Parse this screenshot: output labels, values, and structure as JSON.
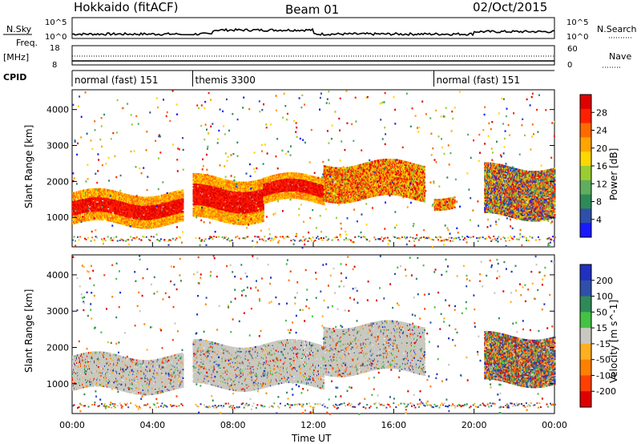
{
  "header": {
    "radar": "Hokkaido (fitACF)",
    "beam": "Beam 01",
    "date": "02/Oct/2015"
  },
  "top_panels": {
    "nsky_label": "N.Sky",
    "nsky_ticks": [
      "10^5",
      "10^0"
    ],
    "nsearch_label": "N.Search",
    "nsearch_ticks": [
      "10^5",
      "10^0"
    ],
    "freq_label": "Freq.",
    "freq_unit": "[MHz]",
    "freq_ticks": [
      "18",
      "8"
    ],
    "nave_label": "Nave",
    "nave_ticks": [
      "60",
      "0"
    ],
    "cpid_label": "CPID",
    "cpid_segments": [
      {
        "label": "normal (fast) 151",
        "start_hour": 0,
        "end_hour": 5.5
      },
      {
        "label": "themis 3300",
        "start_hour": 6.0,
        "end_hour": 18.0
      },
      {
        "label": "normal (fast) 151",
        "start_hour": 18.0,
        "end_hour": 24.0
      }
    ]
  },
  "chart_data": [
    {
      "type": "heatmap",
      "name": "power",
      "ylabel": "Slant Range [km]",
      "xlabel": "Time UT",
      "ylim": [
        180,
        4550
      ],
      "xlim": [
        0,
        24
      ],
      "yticks": [
        "1000",
        "2000",
        "3000",
        "4000"
      ],
      "xticks": [
        "00:00",
        "04:00",
        "08:00",
        "12:00",
        "16:00",
        "20:00",
        "00:00"
      ],
      "colorbar": {
        "label": "Power [dB]",
        "ticks": [
          "28",
          "24",
          "20",
          "16",
          "12",
          "8",
          "4"
        ],
        "colors": [
          "#1a1aff",
          "#2f4faa",
          "#2e8b57",
          "#5fae5f",
          "#9acd32",
          "#ffd700",
          "#ffa500",
          "#ff6a00",
          "#ff2000",
          "#e00000"
        ]
      },
      "bands": [
        {
          "t0": 0.0,
          "t1": 5.5,
          "r0": 800,
          "r1": 1650,
          "level": "high"
        },
        {
          "t0": 6.0,
          "t1": 9.5,
          "r0": 900,
          "r1": 2100,
          "level": "high"
        },
        {
          "t0": 9.5,
          "t1": 12.5,
          "r0": 1400,
          "r1": 2100,
          "level": "high"
        },
        {
          "t0": 12.5,
          "t1": 17.5,
          "r0": 1500,
          "r1": 2500,
          "level": "medium"
        },
        {
          "t0": 18.0,
          "t1": 19.0,
          "r0": 1300,
          "r1": 1600,
          "level": "medium"
        },
        {
          "t0": 20.5,
          "t1": 24.0,
          "r0": 1000,
          "r1": 2400,
          "level": "mixed"
        }
      ]
    },
    {
      "type": "heatmap",
      "name": "velocity",
      "ylabel": "Slant Range [km]",
      "xlabel": "Time UT",
      "ylim": [
        180,
        4550
      ],
      "xlim": [
        0,
        24
      ],
      "yticks": [
        "1000",
        "2000",
        "3000",
        "4000"
      ],
      "xticks": [
        "00:00",
        "04:00",
        "08:00",
        "12:00",
        "16:00",
        "20:00",
        "00:00"
      ],
      "colorbar": {
        "label": "Velocity [m s^-1]",
        "ticks": [
          "200",
          "100",
          "50",
          "15",
          "-15",
          "-50",
          "-100",
          "-200"
        ],
        "colors": [
          "#2030c0",
          "#2f4faa",
          "#2e8b57",
          "#44c244",
          "#c8c8c0",
          "#ffb020",
          "#ff8000",
          "#ff4000",
          "#e00000"
        ]
      },
      "bands": [
        {
          "t0": 0.0,
          "t1": 5.5,
          "r0": 800,
          "r1": 1750,
          "level": "ground"
        },
        {
          "t0": 6.0,
          "t1": 12.5,
          "r0": 900,
          "r1": 2100,
          "level": "ground"
        },
        {
          "t0": 12.5,
          "t1": 17.5,
          "r0": 1300,
          "r1": 2600,
          "level": "ground"
        },
        {
          "t0": 20.5,
          "t1": 24.0,
          "r0": 1000,
          "r1": 2300,
          "level": "mixed"
        }
      ]
    }
  ]
}
